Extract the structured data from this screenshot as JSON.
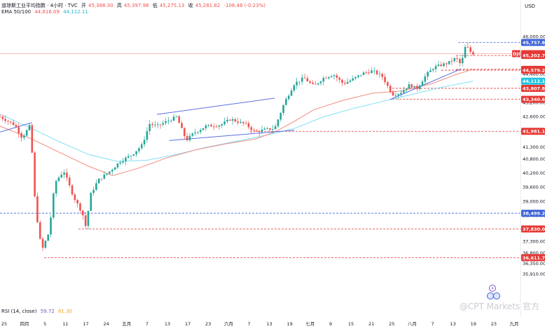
{
  "header": {
    "title": "道琼斯工业平均指数 · 4小时 · TVC",
    "open_label": "开",
    "open_value": "45,388.30",
    "high_label": "高",
    "high_value": "45,397.98",
    "low_label": "低",
    "low_value": "45,275.13",
    "close_label": "收",
    "close_value": "45,281.82",
    "change": "-106.46 (-0.23%)",
    "ema_label": "EMA 50/100",
    "ema50_value": "44,616.09",
    "ema100_value": "44,112.11",
    "rsi_label": "RSI (14, close)",
    "rsi_value": "59.72",
    "rsi_ma_value": "61.30",
    "currency": "USD",
    "symbol_tag": "DJI"
  },
  "watermark": "@CPT Markets 官方",
  "colors": {
    "up": "#26a69a",
    "down": "#ef5350",
    "ema50": "#f28b82",
    "ema100": "#7fe0f5",
    "trendline": "#5b6fe0",
    "support": "#3f63d8",
    "resistance": "#e53935"
  },
  "chart_data": {
    "type": "candlestick",
    "ylim": [
      35700,
      46250
    ],
    "y_ticks": [
      "46,000.00",
      "45,200.00",
      "44,400.00",
      "43,800.00",
      "43,200.00",
      "42,600.00",
      "41,900.00",
      "41,300.00",
      "40,800.00",
      "40,200.00",
      "39,600.00",
      "39,000.00",
      "38,400.00",
      "37,800.00",
      "37,300.00",
      "36,800.00",
      "36,350.00",
      "35,910.00"
    ],
    "x_ticks": [
      "25",
      "四月",
      "5",
      "11",
      "17",
      "24",
      "五月",
      "7",
      "13",
      "17",
      "23",
      "六月",
      "7",
      "13",
      "19",
      "七月",
      "9",
      "15",
      "21",
      "25",
      "八月",
      "7",
      "13",
      "19",
      "23",
      "九月"
    ],
    "price_labels": [
      {
        "text": "45,757.85",
        "value": 45757.85,
        "kind": "blue"
      },
      {
        "text": "45,281.82",
        "value": 45281.82,
        "kind": "red"
      },
      {
        "text": "45,202.74",
        "value": 45202.74,
        "kind": "red"
      },
      {
        "text": "44,616.09",
        "value": 44616.09,
        "kind": "red"
      },
      {
        "text": "44,579.20",
        "value": 44579.2,
        "kind": "red"
      },
      {
        "text": "44,112.11",
        "value": 44112.11,
        "kind": "cyan"
      },
      {
        "text": "43,807.83",
        "value": 43807.83,
        "kind": "red"
      },
      {
        "text": "43,340.69",
        "value": 43340.69,
        "kind": "red"
      },
      {
        "text": "41,981.15",
        "value": 41981.15,
        "kind": "red"
      },
      {
        "text": "38,499.27",
        "value": 38499.27,
        "kind": "blue"
      },
      {
        "text": "37,830.00",
        "value": 37830.0,
        "kind": "red"
      },
      {
        "text": "36,611.79",
        "value": 36611.79,
        "kind": "red"
      }
    ],
    "hlines": [
      {
        "value": 45281.82,
        "style": "solid",
        "color": "#f4a6a6",
        "from": 0.0
      },
      {
        "value": 45757.85,
        "style": "dashed",
        "color": "#3f63d8",
        "from": 0.935
      },
      {
        "value": 45202.74,
        "style": "dashed",
        "color": "#e53935",
        "from": 0.93
      },
      {
        "value": 44616.09,
        "style": "dashed",
        "color": "#e53935",
        "from": 0.93
      },
      {
        "value": 44579.2,
        "style": "dashed",
        "color": "#e53935",
        "from": 0.9
      },
      {
        "value": 43807.83,
        "style": "dashed",
        "color": "#e53935",
        "from": 0.8
      },
      {
        "value": 43340.69,
        "style": "dashed",
        "color": "#e53935",
        "from": 0.8
      },
      {
        "value": 41981.15,
        "style": "dashed",
        "color": "#e53935",
        "from": 0.51
      },
      {
        "value": 38499.27,
        "style": "dashed",
        "color": "#3f63d8",
        "from": 0.0
      },
      {
        "value": 37830.0,
        "style": "dashed",
        "color": "#e53935",
        "from": 0.16
      },
      {
        "value": 36611.79,
        "style": "dashed",
        "color": "#e53935",
        "from": 0.09
      }
    ],
    "trendlines": [
      {
        "p1": [
          0.0,
          41950
        ],
        "p2": [
          0.065,
          42350
        ]
      },
      {
        "p1": [
          0.32,
          42700
        ],
        "p2": [
          0.56,
          43390
        ]
      },
      {
        "p1": [
          0.345,
          41590
        ],
        "p2": [
          0.6,
          42030
        ]
      },
      {
        "p1": [
          0.795,
          43330
        ],
        "p2": [
          0.94,
          44630
        ]
      }
    ],
    "ohlc_anchors": [
      [
        0.0,
        42600
      ],
      [
        0.03,
        42250
      ],
      [
        0.045,
        41700
      ],
      [
        0.062,
        42250
      ],
      [
        0.072,
        38800
      ],
      [
        0.085,
        36900
      ],
      [
        0.1,
        37700
      ],
      [
        0.112,
        39800
      ],
      [
        0.13,
        40300
      ],
      [
        0.15,
        39200
      ],
      [
        0.168,
        38500
      ],
      [
        0.175,
        37920
      ],
      [
        0.185,
        39300
      ],
      [
        0.2,
        39900
      ],
      [
        0.225,
        40300
      ],
      [
        0.245,
        40700
      ],
      [
        0.27,
        41000
      ],
      [
        0.29,
        41400
      ],
      [
        0.305,
        42300
      ],
      [
        0.32,
        42200
      ],
      [
        0.34,
        42400
      ],
      [
        0.36,
        42600
      ],
      [
        0.38,
        41600
      ],
      [
        0.395,
        41900
      ],
      [
        0.42,
        42200
      ],
      [
        0.45,
        42250
      ],
      [
        0.47,
        42500
      ],
      [
        0.49,
        42350
      ],
      [
        0.5,
        42300
      ],
      [
        0.52,
        41950
      ],
      [
        0.54,
        42050
      ],
      [
        0.56,
        42100
      ],
      [
        0.58,
        43200
      ],
      [
        0.6,
        44000
      ],
      [
        0.62,
        44250
      ],
      [
        0.64,
        43900
      ],
      [
        0.66,
        44250
      ],
      [
        0.68,
        44400
      ],
      [
        0.7,
        44000
      ],
      [
        0.72,
        44200
      ],
      [
        0.74,
        44450
      ],
      [
        0.76,
        44550
      ],
      [
        0.78,
        44300
      ],
      [
        0.8,
        43550
      ],
      [
        0.815,
        43600
      ],
      [
        0.835,
        43950
      ],
      [
        0.85,
        43800
      ],
      [
        0.87,
        44400
      ],
      [
        0.885,
        44700
      ],
      [
        0.9,
        44800
      ],
      [
        0.915,
        44900
      ],
      [
        0.93,
        45100
      ],
      [
        0.94,
        44800
      ],
      [
        0.95,
        45660
      ],
      [
        0.958,
        45380
      ],
      [
        0.965,
        45282
      ]
    ],
    "ema50": [
      [
        0.0,
        42200
      ],
      [
        0.06,
        41700
      ],
      [
        0.12,
        41100
      ],
      [
        0.18,
        40500
      ],
      [
        0.23,
        40100
      ],
      [
        0.28,
        40400
      ],
      [
        0.34,
        40850
      ],
      [
        0.4,
        41200
      ],
      [
        0.46,
        41450
      ],
      [
        0.52,
        41650
      ],
      [
        0.56,
        41950
      ],
      [
        0.6,
        42400
      ],
      [
        0.64,
        42900
      ],
      [
        0.7,
        43300
      ],
      [
        0.76,
        43600
      ],
      [
        0.82,
        43700
      ],
      [
        0.88,
        44000
      ],
      [
        0.93,
        44400
      ],
      [
        0.965,
        44616
      ]
    ],
    "ema100": [
      [
        0.0,
        42700
      ],
      [
        0.06,
        42150
      ],
      [
        0.12,
        41550
      ],
      [
        0.18,
        41000
      ],
      [
        0.24,
        40700
      ],
      [
        0.3,
        40750
      ],
      [
        0.36,
        41000
      ],
      [
        0.42,
        41300
      ],
      [
        0.48,
        41550
      ],
      [
        0.54,
        41800
      ],
      [
        0.6,
        42100
      ],
      [
        0.66,
        42600
      ],
      [
        0.72,
        42950
      ],
      [
        0.78,
        43250
      ],
      [
        0.84,
        43550
      ],
      [
        0.9,
        43850
      ],
      [
        0.965,
        44112
      ]
    ]
  }
}
